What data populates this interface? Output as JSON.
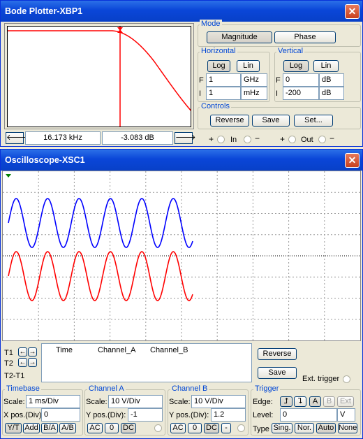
{
  "bode": {
    "title": "Bode Plotter-XBP1",
    "close": "✕",
    "readout": {
      "freq": "16.173 kHz",
      "mag": "-3.083 dB"
    },
    "nav": {
      "left": "🡐",
      "right": "🡒"
    },
    "mode": {
      "title": "Mode",
      "magnitude": "Magnitude",
      "phase": "Phase"
    },
    "horizontal": {
      "title": "Horizontal",
      "log": "Log",
      "lin": "Lin",
      "f_label": "F",
      "i_label": "I",
      "f_value": "1",
      "f_unit": "GHz",
      "i_value": "1",
      "i_unit": "mHz"
    },
    "vertical": {
      "title": "Vertical",
      "log": "Log",
      "lin": "Lin",
      "f_label": "F",
      "i_label": "I",
      "f_value": "0",
      "f_unit": "dB",
      "i_value": "-200",
      "i_unit": "dB"
    },
    "controls": {
      "title": "Controls",
      "reverse": "Reverse",
      "save": "Save",
      "set": "Set..."
    },
    "terminals": {
      "in": "In",
      "out": "Out",
      "plus": "+",
      "minus": "−"
    },
    "plot": {
      "trace_color": "#ff0000",
      "cursor_color": "#ff0000",
      "bg": "#ffffff"
    }
  },
  "scope": {
    "title": "Oscilloscope-XSC1",
    "close": "✕",
    "trace_a_color": "#0000ff",
    "trace_b_color": "#ff0000",
    "grid_bg": "#ffffff",
    "cursor_table": {
      "t1": "T1",
      "t2": "T2",
      "t2t1": "T2-T1",
      "col_time": "Time",
      "col_a": "Channel_A",
      "col_b": "Channel_B",
      "arrow_left": "←",
      "arrow_right": "→"
    },
    "buttons": {
      "reverse": "Reverse",
      "save": "Save",
      "ext_trigger": "Ext. trigger"
    },
    "timebase": {
      "title": "Timebase",
      "scale_label": "Scale:",
      "scale_value": "1 ms/Div",
      "xpos_label": "X pos.(Div):",
      "xpos_value": "0",
      "yt": "Y/T",
      "add": "Add",
      "ba": "B/A",
      "ab": "A/B"
    },
    "channel_a": {
      "title": "Channel A",
      "scale_label": "Scale:",
      "scale_value": "10  V/Div",
      "ypos_label": "Y pos.(Div):",
      "ypos_value": "-1",
      "ac": "AC",
      "zero": "0",
      "dc": "DC"
    },
    "channel_b": {
      "title": "Channel B",
      "scale_label": "Scale:",
      "scale_value": "10  V/Div",
      "ypos_label": "Y pos.(Div):",
      "ypos_value": "1.2",
      "ac": "AC",
      "zero": "0",
      "dc": "DC",
      "minus": "-"
    },
    "trigger": {
      "title": "Trigger",
      "edge_label": "Edge:",
      "rise": "⮥",
      "fall": "⮧",
      "a": "A",
      "b": "B",
      "ext": "Ext",
      "level_label": "Level:",
      "level_value": "0",
      "level_unit": "V",
      "type_label": "Type",
      "sing": "Sing.",
      "nor": "Nor.",
      "auto": "Auto",
      "none": "None"
    }
  }
}
